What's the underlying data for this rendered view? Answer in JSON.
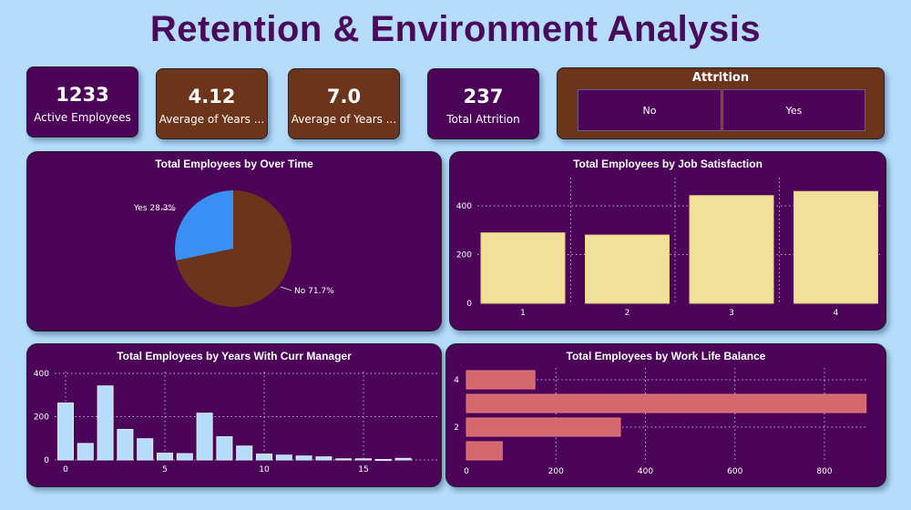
{
  "title": "Retention & Environment Analysis",
  "kpis": [
    {
      "value": "1233",
      "label": "Active Employees"
    },
    {
      "value": "4.12",
      "label": "Average of Years ..."
    },
    {
      "value": "7.0",
      "label": "Average of Years ..."
    },
    {
      "value": "237",
      "label": "Total Attrition"
    }
  ],
  "slicer": {
    "title": "Attrition",
    "options": [
      "No",
      "Yes"
    ]
  },
  "colors": {
    "purple": "#4b0458",
    "brown": "#6c341b",
    "pie_yes": "#3a8ff5",
    "pie_no": "#6c341b",
    "bar_yellow": "#f0e099",
    "bar_blue": "#b5dcfb",
    "bar_red": "#d3686e"
  },
  "chart_data": [
    {
      "type": "pie",
      "title": "Total Employees by Over Time",
      "categories": [
        "Yes",
        "No"
      ],
      "values": [
        28.3,
        71.7
      ],
      "labels": [
        "Yes 28.3%",
        "No 71.7%"
      ]
    },
    {
      "type": "bar",
      "title": "Total Employees by Job Satisfaction",
      "categories": [
        "1",
        "2",
        "3",
        "4"
      ],
      "values": [
        289,
        280,
        442,
        459
      ],
      "yticks": [
        "0",
        "200",
        "400"
      ],
      "ylim": [
        0,
        480
      ]
    },
    {
      "type": "bar",
      "title": "Total Employees by Years With Curr Manager",
      "x": [
        0,
        1,
        2,
        3,
        4,
        5,
        6,
        7,
        8,
        9,
        10,
        11,
        12,
        13,
        14,
        15,
        16,
        17
      ],
      "values": [
        263,
        76,
        342,
        141,
        98,
        31,
        29,
        216,
        107,
        64,
        27,
        22,
        18,
        14,
        5,
        5,
        2,
        7
      ],
      "xticks": [
        "0",
        "5",
        "10",
        "15"
      ],
      "yticks": [
        "0",
        "200",
        "400"
      ],
      "ylim": [
        0,
        400
      ]
    },
    {
      "type": "bar",
      "orientation": "horizontal",
      "title": "Total Employees by Work Life Balance",
      "categories": [
        "4",
        "3",
        "2",
        "1"
      ],
      "values": [
        153,
        893,
        344,
        80
      ],
      "ytick_labels": [
        "4",
        "",
        "2",
        ""
      ],
      "xticks": [
        "0",
        "200",
        "400",
        "600",
        "800"
      ],
      "xlim": [
        0,
        900
      ]
    }
  ]
}
